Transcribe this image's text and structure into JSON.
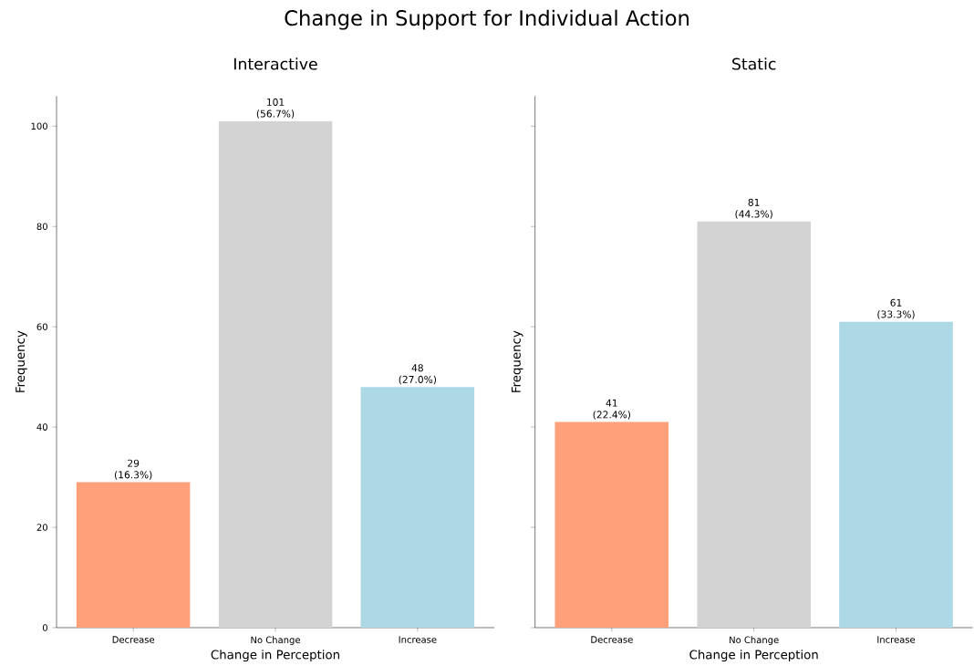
{
  "chart_data": [
    {
      "type": "bar",
      "title": "Interactive",
      "xlabel": "Change in Perception",
      "ylabel": "Frequency",
      "annotations": [
        "Change in Support for Individual Action"
      ],
      "categories": [
        "Decrease",
        "No Change",
        "Increase"
      ],
      "values": [
        29,
        101,
        48
      ],
      "colors": [
        "#ffa07a",
        "#d3d3d3",
        "#add8e6"
      ],
      "value_labels": [
        "29 (16.3%)",
        "101 (56.7%)",
        "48 (27.0%)"
      ],
      "ylim": [
        0,
        106
      ],
      "yticks": [
        0,
        20,
        40,
        60,
        80,
        100
      ]
    },
    {
      "type": "bar",
      "title": "Static",
      "xlabel": "Change in Perception",
      "ylabel": "Frequency",
      "categories": [
        "Decrease",
        "No Change",
        "Increase"
      ],
      "values": [
        41,
        81,
        61
      ],
      "colors": [
        "#ffa07a",
        "#d3d3d3",
        "#add8e6"
      ],
      "value_labels": [
        "41 (22.4%)",
        "81 (44.3%)",
        "61 (33.3%)"
      ],
      "ylim": [
        0,
        106
      ],
      "yticks": [
        0,
        20,
        40,
        60,
        80,
        100
      ],
      "tick_labels": "x"
    }
  ]
}
